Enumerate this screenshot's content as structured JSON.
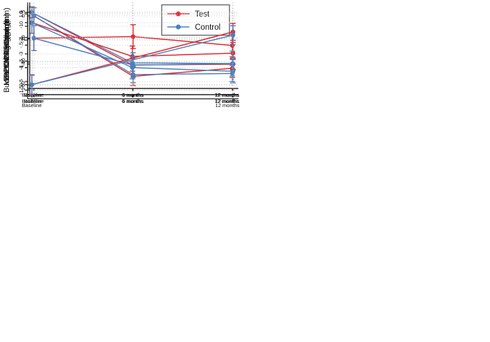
{
  "figure": {
    "background": "#ffffff"
  },
  "styles": {
    "axis_color": "#1a1a1a",
    "grid_color": "#c9c9c9",
    "text_color": "#111111",
    "test_color": "#e0282d",
    "control_color": "#4a80be"
  },
  "legend": {
    "border_color": "#4d4d4d",
    "items": [
      {
        "label": "Test",
        "color": "#e0282d"
      },
      {
        "label": "Control",
        "color": "#4a80be"
      }
    ]
  },
  "chart_data": [
    {
      "type": "line",
      "ylabel": "PPD Change (mm)",
      "categories": [
        "Baseline",
        "6 months",
        "12 months"
      ],
      "yticks": [
        0,
        -1,
        -2,
        -3,
        -4,
        -5
      ],
      "ytick_labels": [
        "0",
        "-1",
        "-2",
        "-3",
        "-4",
        "-5"
      ],
      "ylim": [
        -5.5,
        0.7
      ],
      "grid": true,
      "legend": true,
      "legend_position": "top-right",
      "series": [
        {
          "name": "Test",
          "color": "#e0282d",
          "values": [
            0,
            -3.8,
            -3.75
          ],
          "errors": [
            0.4,
            0.45,
            0.42
          ]
        },
        {
          "name": "Control",
          "color": "#4a80be",
          "values": [
            0,
            -3.65,
            -3.7
          ],
          "errors": [
            0.38,
            0.32,
            0.4
          ]
        }
      ]
    },
    {
      "type": "line",
      "ylabel": "BOP% Change",
      "categories": [
        "Baseline",
        "6 months",
        "12 months"
      ],
      "yticks": [
        0,
        -20,
        -40,
        -60
      ],
      "ytick_labels": [
        "0",
        "-20",
        "-40",
        "-60"
      ],
      "ylim": [
        -63,
        11.4
      ],
      "grid": true,
      "legend": false,
      "series": [
        {
          "name": "Test",
          "color": "#e0282d",
          "values": [
            0,
            -52.5,
            -45.5
          ],
          "errors": [
            7,
            8,
            8
          ]
        },
        {
          "name": "Control",
          "color": "#4a80be",
          "values": [
            0,
            -51,
            -50
          ],
          "errors": [
            7,
            7,
            7
          ]
        }
      ]
    },
    {
      "type": "line",
      "ylabel": "Buccal REC (mm)",
      "categories": [
        "Baseline",
        "6 months",
        "12 months"
      ],
      "yticks": [
        0,
        -0.5,
        -1,
        -1.5
      ],
      "ytick_labels": [
        "0",
        "-.5",
        "-1",
        "-1.5"
      ],
      "ylim": [
        -1.6,
        0.38
      ],
      "grid": true,
      "legend": false,
      "series": [
        {
          "name": "Test",
          "color": "#e0282d",
          "values": [
            0,
            -0.75,
            -0.68
          ],
          "errors": [
            0.24,
            0.23,
            0.24
          ]
        },
        {
          "name": "Control",
          "color": "#4a80be",
          "values": [
            0,
            -1.0,
            -1.08
          ],
          "errors": [
            0.24,
            0.25,
            0.26
          ]
        }
      ]
    },
    {
      "type": "line",
      "ylabel": "Buccal KM Change (mm)",
      "categories": [
        "Baseline",
        "6 months",
        "12 months"
      ],
      "yticks": [
        0.5,
        0,
        -0.5,
        -1
      ],
      "ytick_labels": [
        ".5",
        "0",
        "-.5",
        "-1"
      ],
      "ylim": [
        -1.09,
        0.63
      ],
      "grid": true,
      "legend": false,
      "series": [
        {
          "name": "Test",
          "color": "#e0282d",
          "values": [
            0,
            0.03,
            -0.14
          ],
          "errors": [
            0.24,
            0.23,
            0.22
          ]
        },
        {
          "name": "Control",
          "color": "#4a80be",
          "values": [
            0,
            -0.52,
            -0.49
          ],
          "errors": [
            0.24,
            0.24,
            0.24
          ]
        }
      ]
    },
    {
      "type": "line",
      "ylabel": "MBL Change (mm)",
      "categories": [
        "Baseline",
        "12 months"
      ],
      "yticks": [
        1.5,
        1,
        0.5,
        0
      ],
      "ytick_labels": [
        "1.5",
        "1",
        ".5",
        "0"
      ],
      "ylim": [
        -0.3,
        1.62
      ],
      "grid": true,
      "legend": false,
      "series": [
        {
          "name": "Test",
          "color": "#e0282d",
          "values": [
            0,
            1.12
          ],
          "errors": [
            0.21,
            0.18
          ]
        },
        {
          "name": "Control",
          "color": "#4a80be",
          "values": [
            0,
            1.05
          ],
          "errors": [
            0.2,
            0.2
          ]
        }
      ]
    }
  ]
}
